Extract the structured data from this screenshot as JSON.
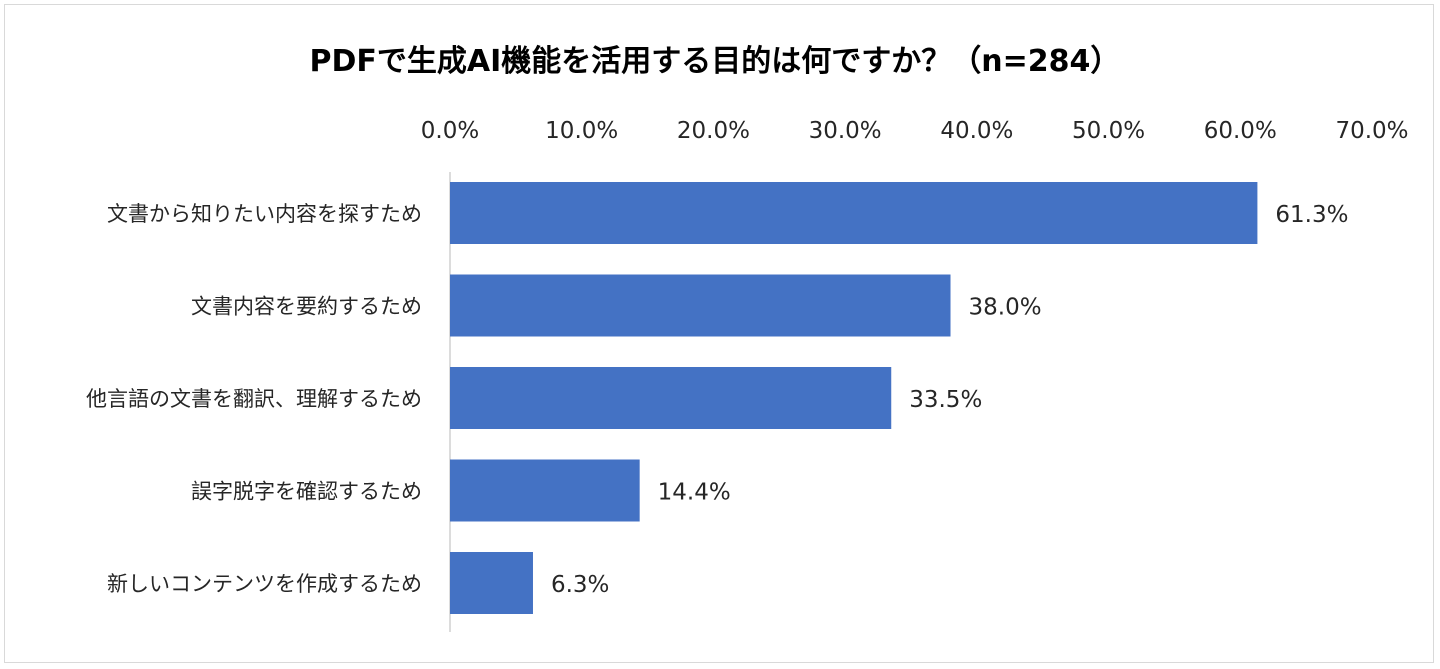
{
  "chart_data": {
    "type": "bar",
    "orientation": "horizontal",
    "title": "PDFで生成AI機能を活用する目的は何ですか？（n=284）",
    "categories": [
      "文書から知りたい内容を探すため",
      "文書内容を要約するため",
      "他言語の文書を翻訳、理解するため",
      "誤字脱字を確認するため",
      "新しいコンテンツを作成するため"
    ],
    "values": [
      61.3,
      38.0,
      33.5,
      14.4,
      6.3
    ],
    "value_labels": [
      "61.3%",
      "38.0%",
      "33.5%",
      "14.4%",
      "6.3%"
    ],
    "xlim": [
      0,
      70
    ],
    "x_ticks": [
      0,
      10,
      20,
      30,
      40,
      50,
      60,
      70
    ],
    "x_tick_labels": [
      "0.0%",
      "10.0%",
      "20.0%",
      "30.0%",
      "40.0%",
      "50.0%",
      "60.0%",
      "70.0%"
    ],
    "axis_position": "top",
    "grid": false,
    "legend": "none",
    "bar_color": "#4472C4"
  }
}
